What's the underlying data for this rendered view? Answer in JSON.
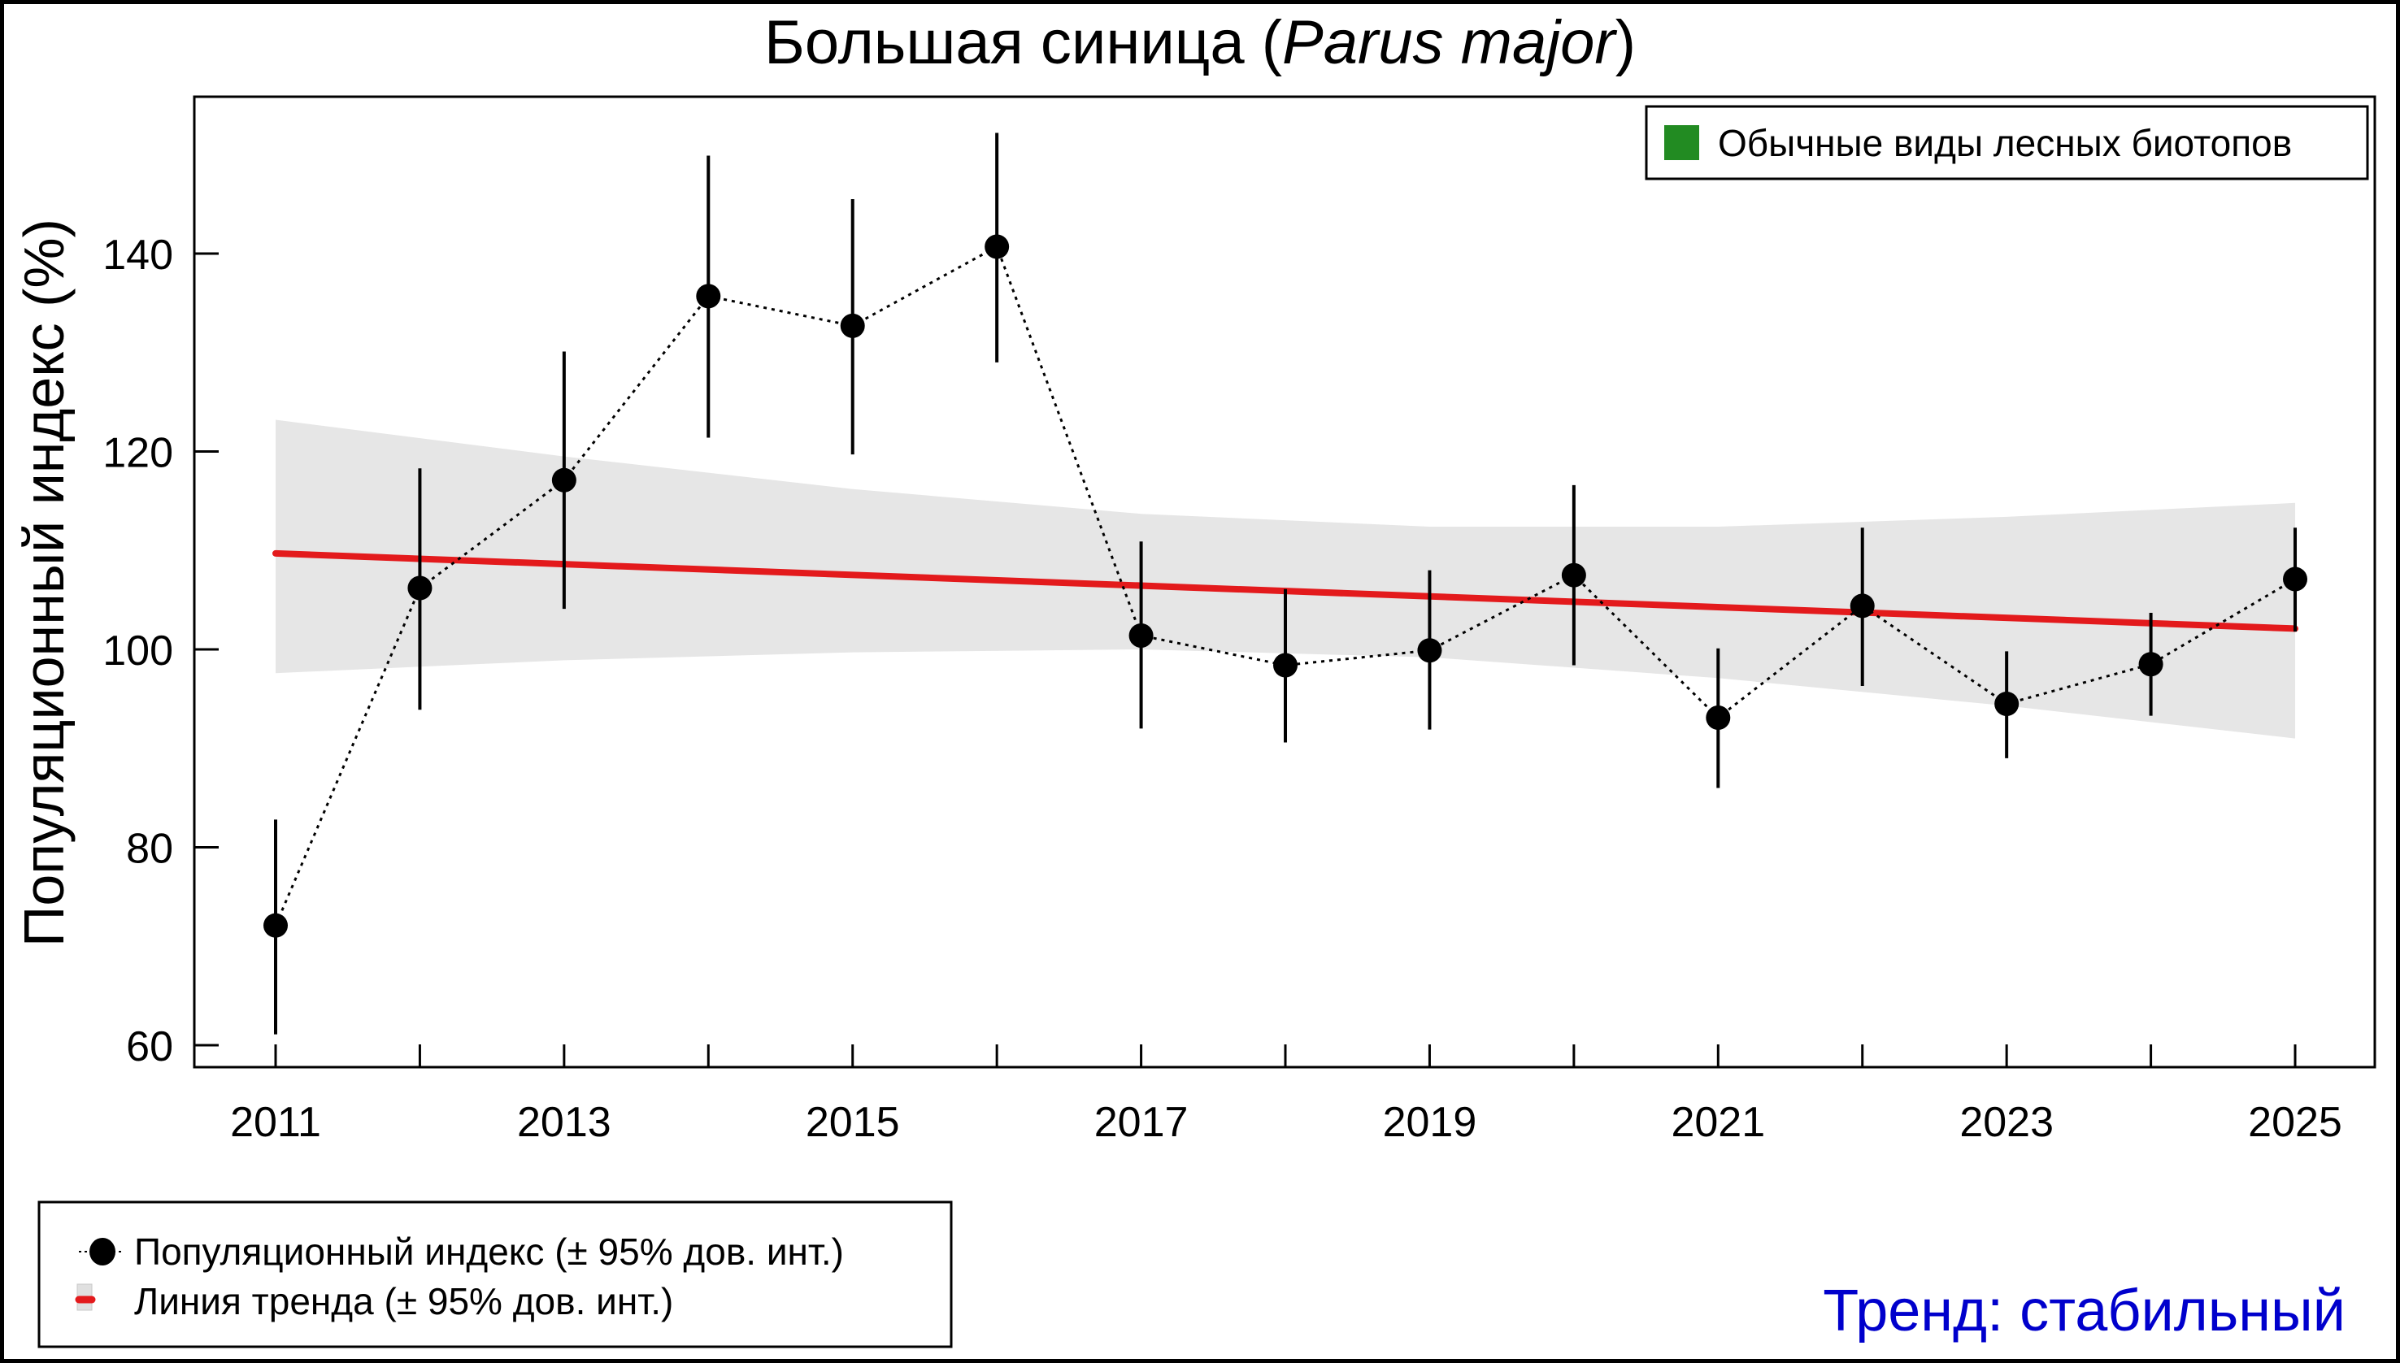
{
  "chart_data": {
    "type": "line",
    "title": "Большая синица (",
    "title_italic": "Parus major",
    "title_suffix": ")",
    "xlabel": "",
    "ylabel": "Популяционный индекс (%)",
    "xlim": [
      2010.44,
      2025.55
    ],
    "ylim": [
      57.8,
      155.5
    ],
    "x_ticks": [
      2011,
      2012,
      2013,
      2014,
      2015,
      2016,
      2017,
      2018,
      2019,
      2020,
      2021,
      2022,
      2023,
      2024,
      2025
    ],
    "x_tick_labels": [
      "2011",
      "2013",
      "2015",
      "2017",
      "2019",
      "2021",
      "2023",
      "2025"
    ],
    "x_tick_label_years": [
      2011,
      2013,
      2015,
      2017,
      2019,
      2021,
      2023,
      2025
    ],
    "y_ticks": [
      60,
      80,
      100,
      120,
      140
    ],
    "y_tick_labels": [
      "60",
      "80",
      "100",
      "120",
      "140"
    ],
    "grid": false,
    "series": [
      {
        "name": "Популяционный индекс (± 95% дов. инт.)",
        "x": [
          2011,
          2012,
          2013,
          2014,
          2015,
          2016,
          2017,
          2018,
          2019,
          2020,
          2021,
          2022,
          2023,
          2024,
          2025
        ],
        "values": [
          72.1,
          106.2,
          117.1,
          135.7,
          132.7,
          140.7,
          101.4,
          98.4,
          99.9,
          107.5,
          93.1,
          104.4,
          94.5,
          98.5,
          107.1
        ],
        "ci_upper": [
          82.8,
          118.3,
          130.1,
          149.9,
          145.5,
          152.2,
          110.9,
          106.1,
          108.0,
          116.6,
          100.1,
          112.3,
          99.8,
          103.7,
          112.3
        ],
        "ci_lower": [
          61.1,
          93.9,
          104.1,
          121.4,
          119.7,
          129.0,
          92.0,
          90.6,
          91.9,
          98.4,
          86.0,
          96.3,
          89.0,
          93.3,
          101.8
        ],
        "color": "#000000",
        "style": "dotted-with-points"
      },
      {
        "name": "Линия тренда (± 95% дов. инт.)",
        "x": [
          2011,
          2025
        ],
        "values": [
          109.7,
          102.1
        ],
        "band_x": [
          2011,
          2013,
          2015,
          2017,
          2019,
          2021,
          2023,
          2025
        ],
        "band_upper": [
          123.2,
          119.5,
          116.2,
          113.7,
          112.4,
          112.4,
          113.4,
          114.8
        ],
        "band_lower": [
          97.6,
          98.9,
          99.7,
          100.0,
          99.2,
          97.1,
          94.3,
          91.0
        ],
        "color": "#e31a1c",
        "band_color": "#e6e6e6"
      }
    ],
    "habitat_legend": {
      "label": "Обычные виды лесных биотопов",
      "color": "#228b22",
      "position": "top-right"
    },
    "legend": {
      "position": "bottom-left",
      "entries": [
        "Популяционный индекс (± 95% дов. инт.)",
        "Линия тренда (± 95% дов. инт.)"
      ]
    },
    "annotation": {
      "text": "Тренд: стабильный",
      "color": "#0000cc",
      "position": "bottom-right"
    }
  }
}
